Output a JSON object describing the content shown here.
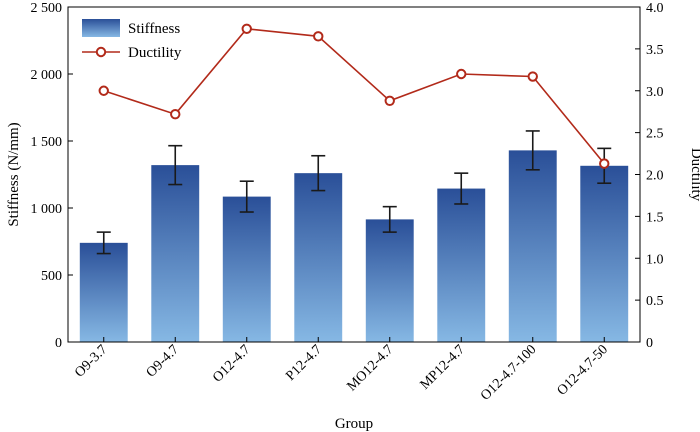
{
  "chart_data": {
    "type": "bar",
    "xlabel": "Group",
    "ylabel": "Stiffness (N/mm)",
    "y2label": "Ductility",
    "categories": [
      "O9-3.7",
      "O9-4.7",
      "O12-4.7",
      "P12-4.7",
      "MO12-4.7",
      "MP12-4.7",
      "O12-4.7-100",
      "O12-4.7-50"
    ],
    "ylim": [
      0,
      2500
    ],
    "y2lim": [
      0,
      4.0
    ],
    "yticks": [
      "0",
      "500",
      "1 000",
      "1 500",
      "2 000",
      "2 500"
    ],
    "y2ticks": [
      "0",
      "0.5",
      "1.0",
      "1.5",
      "2.0",
      "2.5",
      "3.0",
      "3.5",
      "4.0"
    ],
    "legend_position": "top-left",
    "series": [
      {
        "name": "Stiffness",
        "type": "bar",
        "axis": "left",
        "values": [
          740,
          1320,
          1085,
          1260,
          915,
          1145,
          1430,
          1315
        ],
        "errors": [
          80,
          145,
          115,
          130,
          95,
          115,
          145,
          130
        ],
        "color_top": "#2a4f98",
        "color_bottom": "#86b8e4"
      },
      {
        "name": "Ductility",
        "type": "line",
        "axis": "right",
        "values": [
          3.0,
          2.72,
          3.74,
          3.65,
          2.88,
          3.2,
          3.17,
          2.13
        ],
        "color": "#b22a1a"
      }
    ]
  }
}
